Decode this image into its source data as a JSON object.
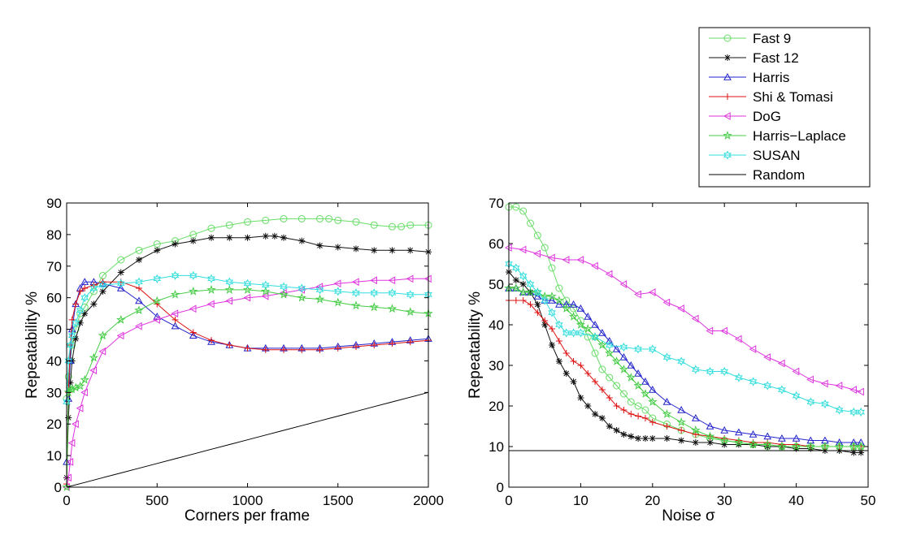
{
  "legend": [
    {
      "name": "Fast 9",
      "color": "#66dd66",
      "marker": "circle"
    },
    {
      "name": "Fast 12",
      "color": "#111111",
      "marker": "star"
    },
    {
      "name": "Harris",
      "color": "#2222cc",
      "marker": "triangle-up"
    },
    {
      "name": "Shi & Tomasi",
      "color": "#dd1111",
      "marker": "plus"
    },
    {
      "name": "DoG",
      "color": "#dd33dd",
      "marker": "triangle-left"
    },
    {
      "name": "Harris−Laplace",
      "color": "#44cc44",
      "marker": "pentagram"
    },
    {
      "name": "SUSAN",
      "color": "#33dddd",
      "marker": "hexagram"
    },
    {
      "name": "Random",
      "color": "#000000",
      "marker": "none"
    }
  ],
  "chart_data": [
    {
      "type": "line",
      "xlabel": "Corners per frame",
      "ylabel": "Repeatability %",
      "xlim": [
        0,
        2000
      ],
      "ylim": [
        0,
        90
      ],
      "xticks": [
        0,
        500,
        1000,
        1500,
        2000
      ],
      "yticks": [
        0,
        10,
        20,
        30,
        40,
        50,
        60,
        70,
        80,
        90
      ],
      "series": [
        {
          "name": "Fast 9",
          "x": [
            0,
            10,
            20,
            30,
            50,
            75,
            100,
            150,
            200,
            300,
            400,
            500,
            600,
            700,
            800,
            900,
            1000,
            1100,
            1200,
            1300,
            1400,
            1450,
            1500,
            1600,
            1700,
            1800,
            1850,
            1900,
            2000
          ],
          "y": [
            28,
            35,
            40,
            45,
            50,
            55,
            57,
            62,
            67,
            72,
            75,
            77,
            78,
            80,
            82,
            83,
            84,
            84.5,
            85,
            85,
            85,
            85,
            84.5,
            84,
            83,
            82.5,
            82.5,
            83,
            83
          ]
        },
        {
          "name": "Fast 12",
          "x": [
            0,
            10,
            20,
            30,
            50,
            75,
            100,
            150,
            200,
            300,
            400,
            500,
            600,
            700,
            800,
            900,
            1000,
            1100,
            1150,
            1200,
            1300,
            1400,
            1500,
            1600,
            1700,
            1800,
            1900,
            2000
          ],
          "y": [
            3,
            22,
            33,
            40,
            47,
            52,
            55,
            58,
            62,
            68,
            72,
            75,
            77,
            78,
            79,
            79,
            79,
            79.5,
            79.5,
            79,
            78,
            76.5,
            76,
            75.5,
            75,
            75,
            75,
            74.5
          ]
        },
        {
          "name": "Harris",
          "x": [
            0,
            10,
            20,
            30,
            50,
            75,
            100,
            150,
            200,
            300,
            400,
            500,
            600,
            700,
            800,
            900,
            1000,
            1100,
            1200,
            1300,
            1400,
            1500,
            1600,
            1700,
            1800,
            1900,
            2000
          ],
          "y": [
            8,
            28,
            40,
            50,
            58,
            63,
            65,
            65,
            64.5,
            63,
            59,
            54,
            51,
            48,
            46,
            45,
            44,
            44,
            44,
            44,
            44,
            44.5,
            45,
            45.5,
            46,
            46.5,
            47
          ]
        },
        {
          "name": "Shi & Tomasi",
          "x": [
            0,
            10,
            20,
            30,
            50,
            75,
            100,
            150,
            200,
            300,
            400,
            500,
            600,
            700,
            800,
            900,
            1000,
            1100,
            1200,
            1300,
            1400,
            1500,
            1600,
            1700,
            1800,
            1900,
            2000
          ],
          "y": [
            1,
            30,
            45,
            53,
            58,
            62,
            63,
            64,
            65,
            65,
            63,
            58,
            53,
            49,
            46.5,
            45,
            44,
            43.5,
            43.5,
            43.5,
            43.5,
            44,
            44.5,
            45,
            45.5,
            46,
            46.5
          ]
        },
        {
          "name": "DoG",
          "x": [
            0,
            10,
            20,
            30,
            50,
            75,
            100,
            150,
            200,
            300,
            400,
            500,
            600,
            700,
            800,
            900,
            1000,
            1100,
            1200,
            1300,
            1400,
            1500,
            1600,
            1700,
            1800,
            1900,
            2000
          ],
          "y": [
            0,
            3,
            8,
            14,
            20,
            25,
            30,
            37,
            43,
            48,
            51,
            53,
            55,
            56.5,
            58,
            59,
            60,
            60.5,
            61.5,
            62.5,
            63.5,
            64.5,
            65,
            65.5,
            65.5,
            66,
            66
          ]
        },
        {
          "name": "Harris−Laplace",
          "x": [
            0,
            10,
            20,
            30,
            50,
            75,
            100,
            150,
            200,
            300,
            400,
            500,
            600,
            700,
            800,
            900,
            1000,
            1100,
            1200,
            1300,
            1400,
            1500,
            1600,
            1700,
            1800,
            1900,
            2000
          ],
          "y": [
            0,
            30,
            31,
            31,
            31.5,
            32,
            34,
            41,
            48,
            53,
            56,
            59,
            61,
            62,
            62.5,
            62.5,
            62.5,
            62,
            61,
            60,
            59.5,
            58.5,
            57.5,
            57,
            56.5,
            55.5,
            55
          ]
        },
        {
          "name": "SUSAN",
          "x": [
            0,
            10,
            20,
            30,
            50,
            75,
            100,
            150,
            200,
            300,
            400,
            500,
            600,
            700,
            800,
            900,
            1000,
            1100,
            1200,
            1300,
            1400,
            1500,
            1600,
            1700,
            1800,
            1900,
            2000
          ],
          "y": [
            27,
            40,
            45,
            48,
            52,
            56,
            60,
            63,
            64,
            64.5,
            65,
            66,
            67,
            67,
            66,
            65,
            64.5,
            64,
            63.5,
            63,
            62.5,
            62,
            61.5,
            61.5,
            61.5,
            61,
            61
          ]
        },
        {
          "name": "Random",
          "x": [
            0,
            100,
            200,
            300,
            400,
            500,
            600,
            700,
            800,
            900,
            1000,
            1100,
            1200,
            1300,
            1400,
            1500,
            1600,
            1700,
            1800,
            1900,
            2000
          ],
          "y": [
            0,
            1.5,
            3,
            4.5,
            6,
            7.5,
            9,
            10.5,
            12,
            13.5,
            15,
            16.5,
            18,
            19.5,
            21,
            22.5,
            24,
            25.5,
            27,
            28.5,
            30
          ]
        }
      ]
    },
    {
      "type": "line",
      "xlabel": "Noise σ",
      "ylabel": "Repeatability %",
      "xlim": [
        0,
        50
      ],
      "ylim": [
        0,
        70
      ],
      "xticks": [
        0,
        10,
        20,
        30,
        40,
        50
      ],
      "yticks": [
        0,
        10,
        20,
        30,
        40,
        50,
        60,
        70
      ],
      "series": [
        {
          "name": "Fast 9",
          "x": [
            0,
            1,
            2,
            3,
            4,
            5,
            6,
            7,
            8,
            9,
            10,
            11,
            12,
            13,
            14,
            15,
            16,
            17,
            18,
            19,
            20,
            22,
            24,
            26,
            28,
            30,
            32,
            34,
            36,
            38,
            40,
            42,
            44,
            46,
            48,
            49
          ],
          "y": [
            69,
            69,
            68,
            65,
            62,
            59,
            54,
            49,
            46,
            44,
            41,
            37,
            33,
            29,
            27,
            25,
            23,
            21,
            20,
            19,
            17,
            15.5,
            14,
            13,
            12,
            11.5,
            11,
            10.5,
            10,
            10,
            10,
            10,
            10,
            10,
            10,
            10
          ]
        },
        {
          "name": "Fast 12",
          "x": [
            0,
            1,
            2,
            3,
            4,
            5,
            6,
            7,
            8,
            9,
            10,
            11,
            12,
            13,
            14,
            15,
            16,
            17,
            18,
            19,
            20,
            22,
            24,
            26,
            28,
            30,
            32,
            34,
            36,
            38,
            40,
            42,
            44,
            46,
            48,
            49
          ],
          "y": [
            53,
            51,
            50,
            48,
            45,
            40,
            35,
            31,
            28,
            26,
            22,
            20,
            18,
            17,
            15,
            14,
            13,
            12.5,
            12,
            12,
            12,
            12,
            11.5,
            11,
            11,
            10.5,
            10.5,
            10.5,
            10,
            10,
            9.5,
            9.5,
            9,
            9,
            8.5,
            8.5
          ]
        },
        {
          "name": "Harris",
          "x": [
            0,
            1,
            2,
            3,
            4,
            5,
            6,
            7,
            8,
            9,
            10,
            11,
            12,
            13,
            14,
            15,
            16,
            17,
            18,
            19,
            20,
            22,
            24,
            26,
            28,
            30,
            32,
            34,
            36,
            38,
            40,
            42,
            44,
            46,
            48,
            49
          ],
          "y": [
            49,
            49,
            48,
            48,
            47,
            46,
            46,
            45,
            45,
            45,
            44,
            42,
            40,
            38,
            36,
            34,
            32,
            30,
            28,
            26,
            24,
            21,
            19,
            17,
            15,
            14,
            13.5,
            13,
            12.5,
            12,
            12,
            11.5,
            11.5,
            11,
            11,
            11
          ]
        },
        {
          "name": "Shi & Tomasi",
          "x": [
            0,
            1,
            2,
            3,
            4,
            5,
            6,
            7,
            8,
            9,
            10,
            11,
            12,
            13,
            14,
            15,
            16,
            17,
            18,
            19,
            20,
            22,
            24,
            26,
            28,
            30,
            32,
            34,
            36,
            38,
            40,
            42,
            44,
            46,
            48,
            49
          ],
          "y": [
            46,
            46,
            46,
            45,
            43,
            41,
            39,
            36,
            33,
            31,
            30,
            28,
            26,
            24,
            22,
            20,
            19,
            18,
            17.5,
            17,
            16,
            15,
            14,
            13,
            12.5,
            12,
            11.5,
            11,
            11,
            10.5,
            10.5,
            10,
            10,
            10,
            10,
            10
          ]
        },
        {
          "name": "DoG",
          "x": [
            0,
            2,
            4,
            6,
            8,
            10,
            12,
            14,
            16,
            18,
            20,
            22,
            24,
            26,
            28,
            30,
            32,
            34,
            36,
            38,
            40,
            42,
            44,
            46,
            48,
            49
          ],
          "y": [
            59,
            58.5,
            57.5,
            56.5,
            56,
            56,
            54.5,
            52.5,
            50,
            47.5,
            48,
            45.5,
            44,
            41.5,
            38.5,
            38.5,
            36.5,
            34,
            32,
            30.5,
            28.5,
            26.5,
            25.5,
            25,
            24,
            23.5
          ]
        },
        {
          "name": "Harris−Laplace",
          "x": [
            0,
            1,
            2,
            3,
            4,
            5,
            6,
            7,
            8,
            9,
            10,
            11,
            12,
            13,
            14,
            15,
            16,
            17,
            18,
            19,
            20,
            22,
            24,
            26,
            28,
            30,
            32,
            34,
            36,
            38,
            40,
            42,
            44,
            46,
            48,
            49
          ],
          "y": [
            49,
            49,
            48,
            48,
            48,
            47,
            47,
            46,
            44,
            42,
            40,
            39,
            37,
            35,
            33,
            31,
            29,
            27,
            25,
            23,
            21,
            18,
            16,
            14,
            12.5,
            11.5,
            11,
            10.5,
            10.5,
            10,
            10,
            10,
            10,
            10,
            10,
            10
          ]
        },
        {
          "name": "SUSAN",
          "x": [
            0,
            1,
            2,
            3,
            4,
            5,
            6,
            7,
            8,
            9,
            10,
            12,
            14,
            16,
            18,
            20,
            22,
            24,
            26,
            28,
            30,
            32,
            34,
            36,
            38,
            40,
            42,
            44,
            46,
            48,
            49
          ],
          "y": [
            55,
            54,
            52,
            50,
            48,
            46,
            43,
            40,
            38,
            38,
            38,
            37,
            35,
            34.5,
            34,
            34,
            32,
            31,
            29,
            28.5,
            28.5,
            27,
            26,
            25,
            24,
            22.5,
            21,
            20.5,
            19,
            18.5,
            18.5
          ]
        },
        {
          "name": "Random",
          "x": [
            0,
            50
          ],
          "y": [
            9,
            9
          ]
        }
      ]
    }
  ]
}
